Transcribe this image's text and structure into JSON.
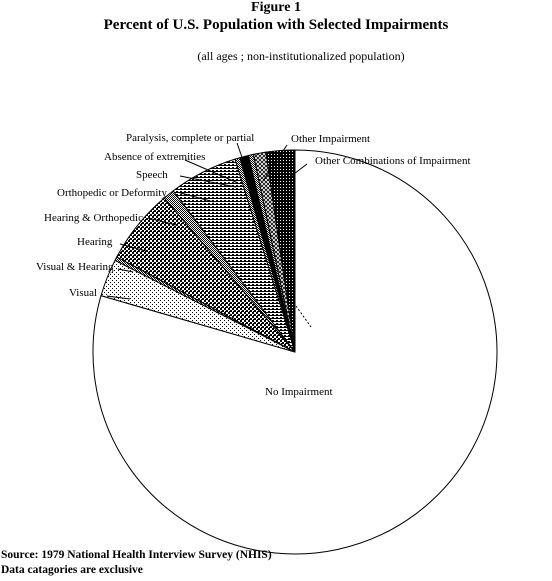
{
  "figure_label": "Figure 1",
  "source_lines": [
    "Source: 1979 National Health Interview Survey (NHIS)",
    "Data catagories are exclusive"
  ],
  "chart_data": {
    "type": "pie",
    "title": "Percent of U.S.  Population with Selected Impairments",
    "subtitle": "(all ages ;  non-institutionalized population)",
    "unit": "percent",
    "slices": [
      {
        "label": "No Impairment",
        "value": 79.5,
        "fill": "white"
      },
      {
        "label": "Visual",
        "value": 3.0,
        "fill": "dots"
      },
      {
        "label": "Visual & Hearing",
        "value": 0.3,
        "fill": "dots-dense"
      },
      {
        "label": "Hearing",
        "value": 6.0,
        "fill": "checker"
      },
      {
        "label": "Hearing & Orthopedic",
        "value": 0.9,
        "fill": "dots-dense"
      },
      {
        "label": "Orthopedic or Deformity",
        "value": 5.5,
        "fill": "hlines"
      },
      {
        "label": "Speech",
        "value": 0.4,
        "fill": "dots-dense"
      },
      {
        "label": "Absence of extremities",
        "value": 0.7,
        "fill": "black"
      },
      {
        "label": "Paralysis, complete or partial",
        "value": 0.4,
        "fill": "dots-dense"
      },
      {
        "label": "Other Impairment",
        "value": 1.0,
        "fill": "crosshatch"
      },
      {
        "label": "Other Combinations of Impairment",
        "value": 2.3,
        "fill": "checker-dark"
      }
    ]
  }
}
